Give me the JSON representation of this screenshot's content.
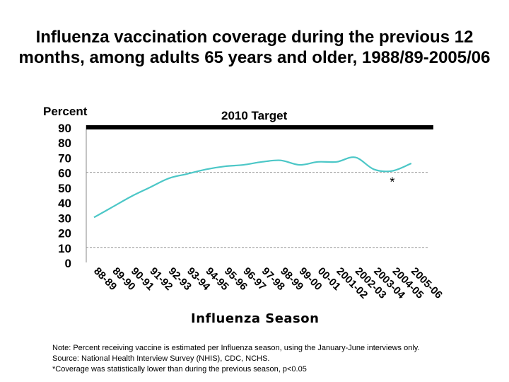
{
  "chart_data": {
    "type": "line",
    "title": "Influenza vaccination coverage during the previous 12 months, among adults 65 years and older, 1988/89-2005/06",
    "ylabel": "Percent",
    "xlabel": "Influenza Season",
    "ylim": [
      0,
      90
    ],
    "yticks": [
      "90",
      "80",
      "70",
      "60",
      "50",
      "40",
      "30",
      "20",
      "10",
      "0"
    ],
    "categories": [
      "88-89",
      "89-90",
      "90-91",
      "91-92",
      "92-93",
      "93-94",
      "94-95",
      "95-96",
      "96-97",
      "97-98",
      "98-99",
      "99-00",
      "00-01",
      "2001-02",
      "2002-03",
      "2003-04",
      "2004-05",
      "2005-06"
    ],
    "series": [
      {
        "values": [
          30,
          37,
          44,
          50,
          56,
          59,
          62,
          64,
          65,
          67,
          68,
          65,
          67,
          67,
          70,
          62,
          61,
          66
        ]
      }
    ],
    "target": {
      "label": "2010 Target",
      "value": 90
    },
    "reference_lines": [
      60,
      10
    ],
    "annotations": [
      {
        "text": "*",
        "category": "2004-05"
      }
    ],
    "grid": false,
    "colors": {
      "line": "#4cc7c7",
      "target": "#000000",
      "reference": "#999999"
    }
  },
  "notes": [
    "Note: Percent receiving vaccine is estimated per Influenza season, using the January-June interviews only.",
    "Source:  National Health Interview Survey (NHIS), CDC, NCHS.",
    "*Coverage was statistically lower than during the previous season, p<0.05"
  ]
}
